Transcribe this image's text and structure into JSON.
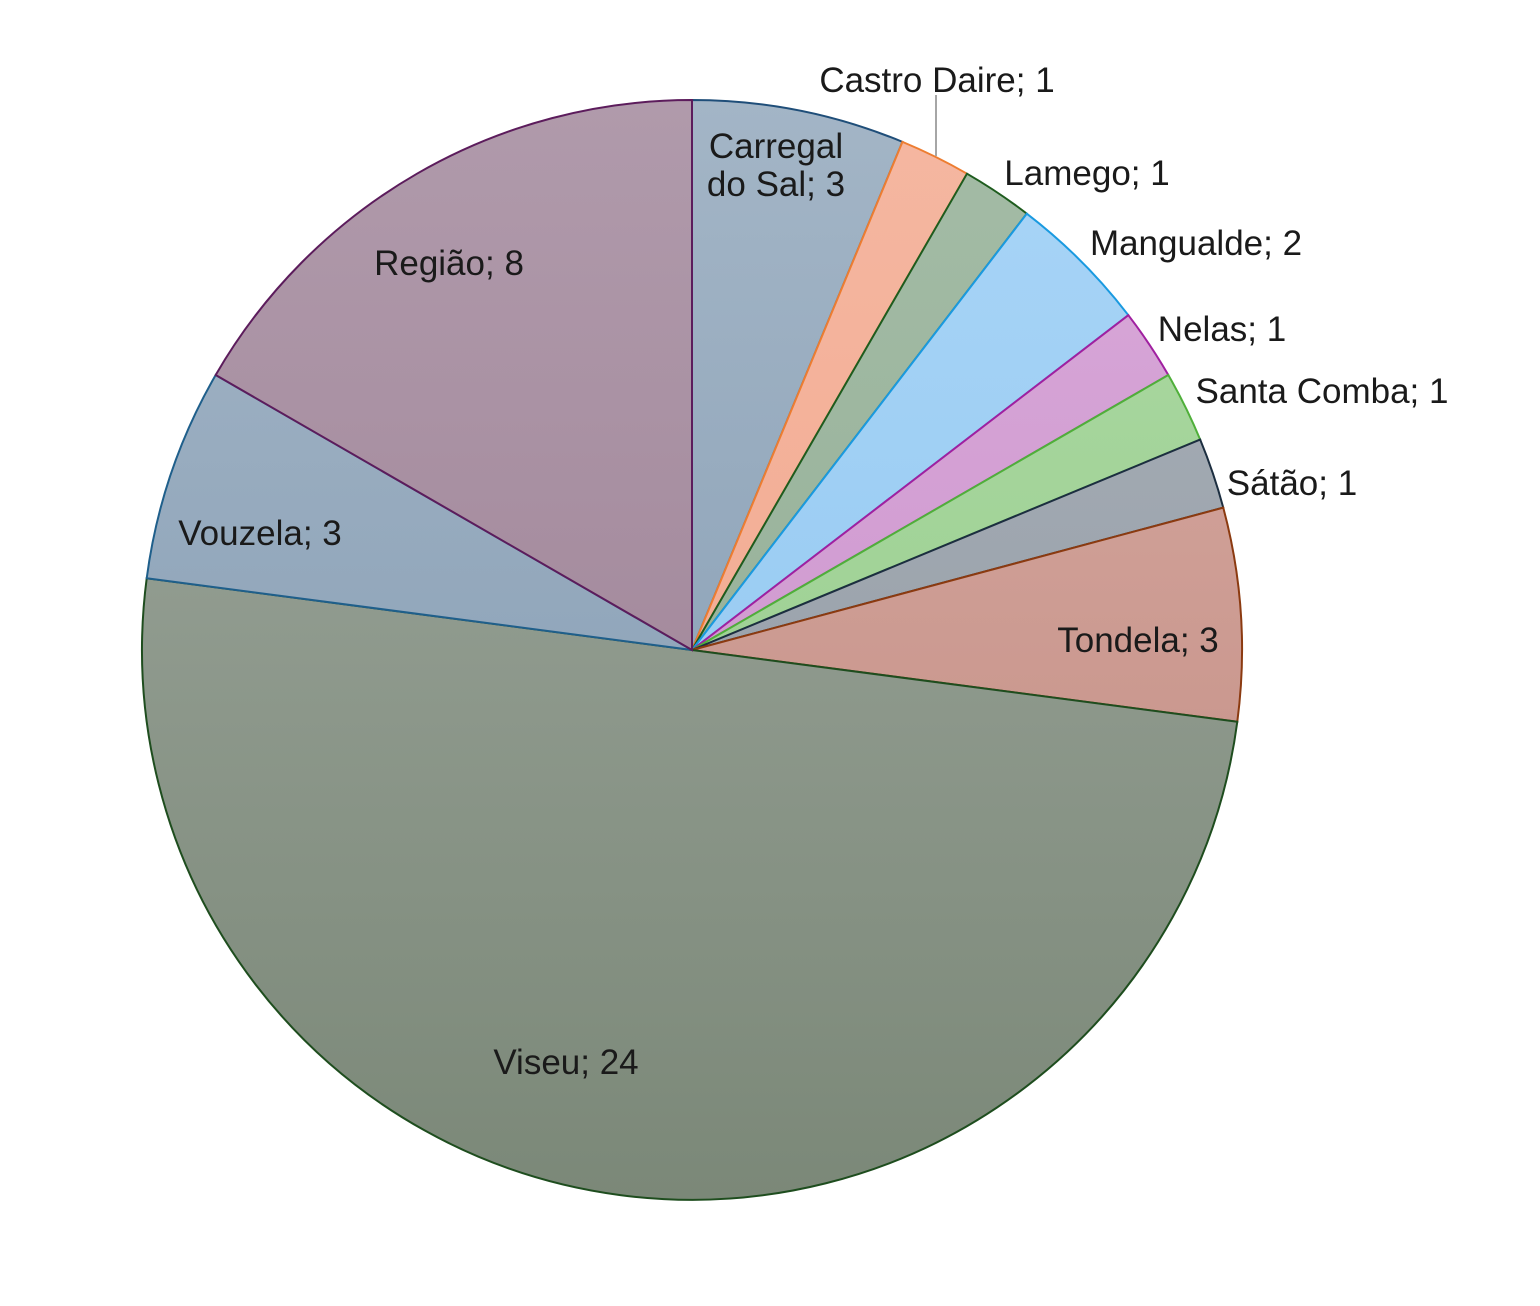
{
  "chart_data": {
    "type": "pie",
    "title": "",
    "start_angle_deg": 0,
    "direction": "clockwise",
    "slices": [
      {
        "label": "Carregal do Sal",
        "value": 3,
        "display": "Carregal do Sal; 3",
        "lines": [
          "Carregal",
          "do Sal; 3"
        ],
        "fill_top": "#a3b5c6",
        "fill_bottom": "#8098b0",
        "stroke": "#1f4e79"
      },
      {
        "label": "Castro Daire",
        "value": 1,
        "display": "Castro Daire; 1",
        "lines": [
          "Castro Daire; 1"
        ],
        "fill_top": "#f5b7a1",
        "fill_bottom": "#f0a489",
        "stroke": "#ed7d31"
      },
      {
        "label": "Lamego",
        "value": 1,
        "display": "Lamego; 1",
        "lines": [
          "Lamego; 1"
        ],
        "fill_top": "#a4bca6",
        "fill_bottom": "#8eaa91",
        "stroke": "#1e5c1e"
      },
      {
        "label": "Mangualde",
        "value": 2,
        "display": "Mangualde; 2",
        "lines": [
          "Mangualde; 2"
        ],
        "fill_top": "#a9d5f7",
        "fill_bottom": "#8cc4ee",
        "stroke": "#1a9ae0"
      },
      {
        "label": "Nelas",
        "value": 1,
        "display": "Nelas; 1",
        "lines": [
          "Nelas; 1"
        ],
        "fill_top": "#d9a9d9",
        "fill_bottom": "#c98fca",
        "stroke": "#a020a0"
      },
      {
        "label": "Santa Comba",
        "value": 1,
        "display": "Santa Comba; 1",
        "lines": [
          "Santa Comba; 1"
        ],
        "fill_top": "#acd9a3",
        "fill_bottom": "#94cb89",
        "stroke": "#4faf3a"
      },
      {
        "label": "Sátão",
        "value": 1,
        "display": "Sátão; 1",
        "lines": [
          "Sátão; 1"
        ],
        "fill_top": "#a9b0b8",
        "fill_bottom": "#8f98a2",
        "stroke": "#1c2e40"
      },
      {
        "label": "Tondela",
        "value": 3,
        "display": "Tondela; 3",
        "lines": [
          "Tondela; 3"
        ],
        "fill_top": "#d8aba3",
        "fill_bottom": "#c08a80",
        "stroke": "#8b3a10"
      },
      {
        "label": "Viseu",
        "value": 24,
        "display": "Viseu; 24",
        "lines": [
          "Viseu; 24"
        ],
        "fill_top": "#a1aaa1",
        "fill_bottom": "#7b8878",
        "stroke": "#1e4d1e"
      },
      {
        "label": "Vouzela",
        "value": 3,
        "display": "Vouzela; 3",
        "lines": [
          "Vouzela; 3"
        ],
        "fill_top": "#a3b5c6",
        "fill_bottom": "#8098b0",
        "stroke": "#1f5f8b"
      },
      {
        "label": "Região",
        "value": 8,
        "display": "Região; 8",
        "lines": [
          "Região; 8"
        ],
        "fill_top": "#b09aab",
        "fill_bottom": "#9a7d91",
        "stroke": "#5c1c5c"
      }
    ],
    "legend": "none"
  }
}
